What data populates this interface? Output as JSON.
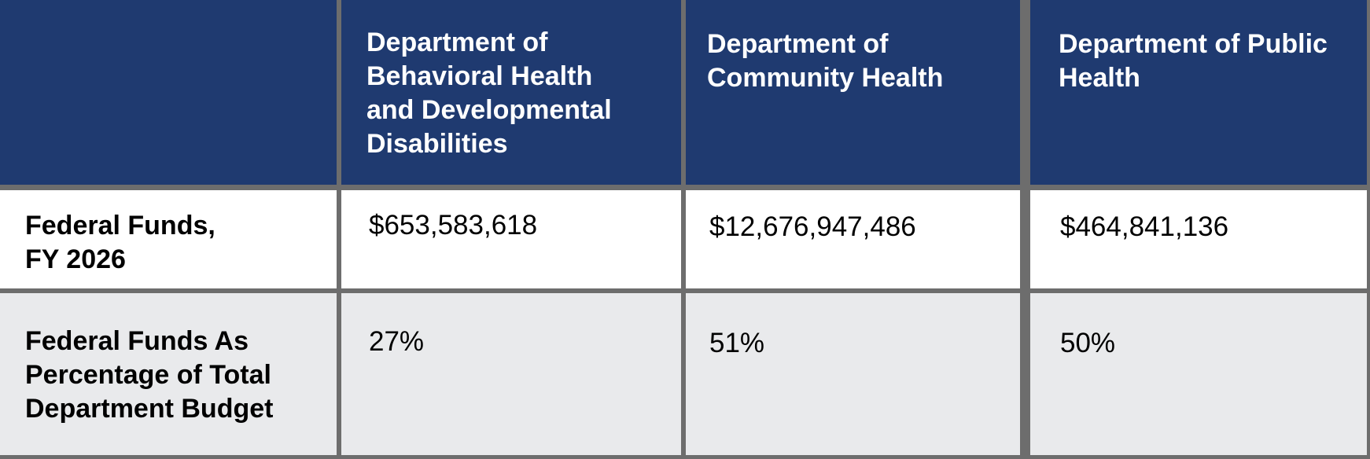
{
  "table": {
    "header": {
      "corner": "",
      "columns": [
        {
          "lines": [
            "Department of",
            "Behavioral Health",
            "and Developmental",
            "Disabilities"
          ]
        },
        {
          "lines": [
            "Department of",
            "Community Health"
          ]
        },
        {
          "lines": [
            "Department of Public",
            "Health"
          ]
        }
      ]
    },
    "rows": [
      {
        "label_lines": [
          "Federal Funds,",
          "FY 2026"
        ],
        "values": [
          "$653,583,618",
          "$12,676,947,486",
          "$464,841,136"
        ]
      },
      {
        "label_lines": [
          "Federal Funds As",
          "Percentage of Total",
          "Department Budget"
        ],
        "values": [
          "27%",
          "51%",
          "50%"
        ]
      }
    ]
  },
  "colors": {
    "header_bg": "#1f3a70",
    "row_white": "#ffffff",
    "row_gray": "#e9eaec",
    "grid_line": "#6d6d6d"
  }
}
